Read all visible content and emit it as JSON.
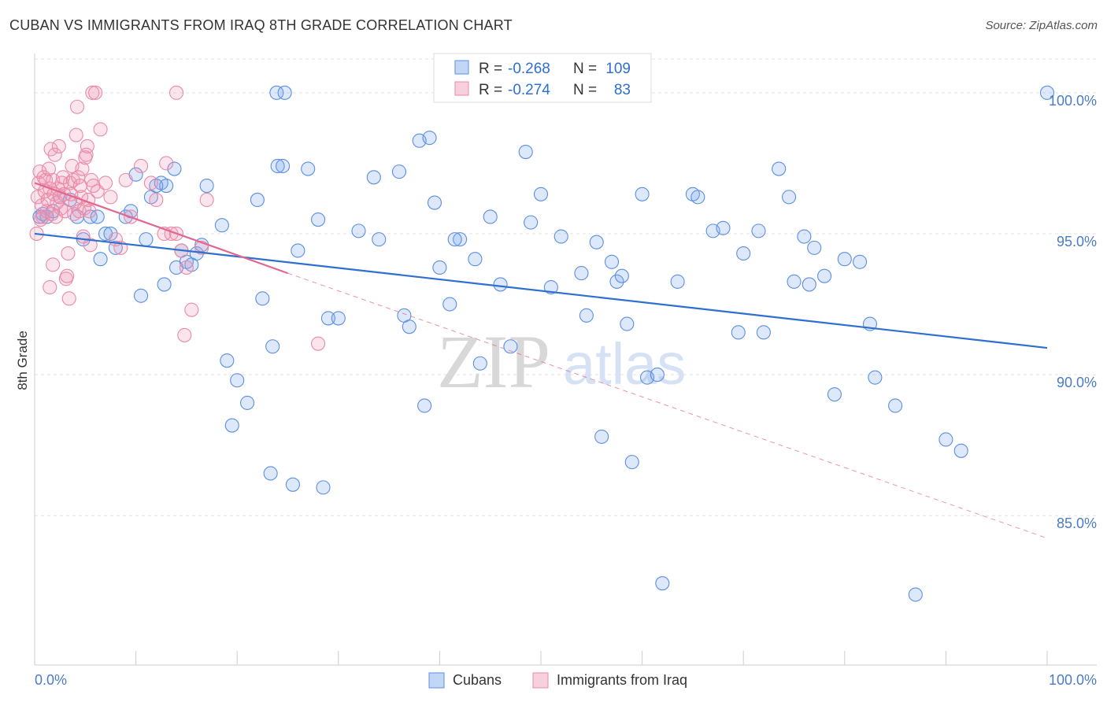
{
  "header": {
    "title": "CUBAN VS IMMIGRANTS FROM IRAQ 8TH GRADE CORRELATION CHART",
    "source": "Source: ZipAtlas.com"
  },
  "watermark": {
    "zip": "ZIP",
    "atlas": "atlas"
  },
  "colors": {
    "blue": "#5b8fe0",
    "blue_fill": "rgba(120,165,235,0.25)",
    "blue_line": "#2f6fd0",
    "pink": "#e98aa8",
    "pink_fill": "rgba(240,150,180,0.25)",
    "pink_line": "#e06890",
    "stat_text": "#2f6fd0",
    "tick_text": "#4a7cc7"
  },
  "legend_top": {
    "rows": [
      {
        "r_label": "R = ",
        "r_value": "-0.268",
        "n_label": "N = ",
        "n_value": "109"
      },
      {
        "r_label": "R = ",
        "r_value": "-0.274",
        "n_label": "N = ",
        "n_value": "83"
      }
    ]
  },
  "chart_data": {
    "type": "scatter",
    "title": "CUBAN VS IMMIGRANTS FROM IRAQ 8TH GRADE CORRELATION CHART",
    "xlabel": "",
    "ylabel": "8th Grade",
    "xlim": [
      0,
      100
    ],
    "ylim": [
      80.4,
      101.0
    ],
    "x_tick_labels": [
      "0.0%",
      "100.0%"
    ],
    "y_ticks": [
      85,
      90,
      95,
      100
    ],
    "y_tick_labels": [
      "85.0%",
      "90.0%",
      "95.0%",
      "100.0%"
    ],
    "grid": true,
    "legend_position": "bottom-center",
    "series": [
      {
        "name": "Cubans",
        "color": "blue",
        "r": -0.268,
        "n": 109,
        "trend": {
          "x": [
            0,
            100
          ],
          "y": [
            95.0,
            90.95
          ],
          "style": "solid"
        },
        "points": [
          [
            0.5,
            95.6
          ],
          [
            0.8,
            95.7
          ],
          [
            1.2,
            95.6
          ],
          [
            1.8,
            95.8
          ],
          [
            2.5,
            96.3
          ],
          [
            3.5,
            96.2
          ],
          [
            4.2,
            95.6
          ],
          [
            4.8,
            94.8
          ],
          [
            5.5,
            95.6
          ],
          [
            6.5,
            94.1
          ],
          [
            6.2,
            95.6
          ],
          [
            7.0,
            95.0
          ],
          [
            7.5,
            95.0
          ],
          [
            8.0,
            94.5
          ],
          [
            9.0,
            95.6
          ],
          [
            9.5,
            95.8
          ],
          [
            10.5,
            92.8
          ],
          [
            11.0,
            94.8
          ],
          [
            11.5,
            96.3
          ],
          [
            12.5,
            96.8
          ],
          [
            13.0,
            96.7
          ],
          [
            10.0,
            97.1
          ],
          [
            12.0,
            96.7
          ],
          [
            13.8,
            97.3
          ],
          [
            14.0,
            93.8
          ],
          [
            14.5,
            94.4
          ],
          [
            15.0,
            94.0
          ],
          [
            12.8,
            93.2
          ],
          [
            15.5,
            93.9
          ],
          [
            16.0,
            94.3
          ],
          [
            16.5,
            94.6
          ],
          [
            17.0,
            96.7
          ],
          [
            18.5,
            95.3
          ],
          [
            19.0,
            90.5
          ],
          [
            19.5,
            88.2
          ],
          [
            20.0,
            89.8
          ],
          [
            21.0,
            89.0
          ],
          [
            22.0,
            96.2
          ],
          [
            22.5,
            92.7
          ],
          [
            23.5,
            91.0
          ],
          [
            24.0,
            97.4
          ],
          [
            24.5,
            97.4
          ],
          [
            25.5,
            86.1
          ],
          [
            26.0,
            94.4
          ],
          [
            27.0,
            97.3
          ],
          [
            28.0,
            95.5
          ],
          [
            28.5,
            86.0
          ],
          [
            29.0,
            92.0
          ],
          [
            30.0,
            92.0
          ],
          [
            23.3,
            86.5
          ],
          [
            32.0,
            95.1
          ],
          [
            33.5,
            97.0
          ],
          [
            34.0,
            94.8
          ],
          [
            36.0,
            97.2
          ],
          [
            36.5,
            92.1
          ],
          [
            37.0,
            91.7
          ],
          [
            38.0,
            98.3
          ],
          [
            38.5,
            88.9
          ],
          [
            39.0,
            98.4
          ],
          [
            39.5,
            96.1
          ],
          [
            40.0,
            93.8
          ],
          [
            41.0,
            92.5
          ],
          [
            42.0,
            94.8
          ],
          [
            43.5,
            94.1
          ],
          [
            44.0,
            90.4
          ],
          [
            45.0,
            95.6
          ],
          [
            46.0,
            93.2
          ],
          [
            47.0,
            91.0
          ],
          [
            48.5,
            97.9
          ],
          [
            49.0,
            95.4
          ],
          [
            50.0,
            96.4
          ],
          [
            51.0,
            93.1
          ],
          [
            52.0,
            94.9
          ],
          [
            54.0,
            93.6
          ],
          [
            54.5,
            92.1
          ],
          [
            55.5,
            94.7
          ],
          [
            56.0,
            87.8
          ],
          [
            57.0,
            94.0
          ],
          [
            57.5,
            93.3
          ],
          [
            58.0,
            93.5
          ],
          [
            58.5,
            91.8
          ],
          [
            59.0,
            86.9
          ],
          [
            60.0,
            96.4
          ],
          [
            60.5,
            89.9
          ],
          [
            61.5,
            90.0
          ],
          [
            62.0,
            82.6
          ],
          [
            63.5,
            93.3
          ],
          [
            65.0,
            96.4
          ],
          [
            65.5,
            96.3
          ],
          [
            67.0,
            95.1
          ],
          [
            68.0,
            95.2
          ],
          [
            69.5,
            91.5
          ],
          [
            70.0,
            94.3
          ],
          [
            71.5,
            95.1
          ],
          [
            72.0,
            91.5
          ],
          [
            73.5,
            97.3
          ],
          [
            74.5,
            96.3
          ],
          [
            75.0,
            93.3
          ],
          [
            76.0,
            94.9
          ],
          [
            76.5,
            93.2
          ],
          [
            77.0,
            94.5
          ],
          [
            78.0,
            93.5
          ],
          [
            79.0,
            89.3
          ],
          [
            80.0,
            94.1
          ],
          [
            81.5,
            94.0
          ],
          [
            82.5,
            91.8
          ],
          [
            83.0,
            89.9
          ],
          [
            85.0,
            88.9
          ],
          [
            87.0,
            82.2
          ],
          [
            90.0,
            87.7
          ],
          [
            91.5,
            87.3
          ],
          [
            100.0,
            100.0
          ],
          [
            23.9,
            100.0
          ],
          [
            24.7,
            100.0
          ],
          [
            41.5,
            94.8
          ]
        ]
      },
      {
        "name": "Immigrants from Iraq",
        "color": "pink",
        "r": -0.274,
        "n": 83,
        "trend": {
          "x": [
            0,
            25
          ],
          "y": [
            96.8,
            93.6
          ],
          "style": "solid",
          "ext_x": [
            25,
            100
          ],
          "ext_y": [
            93.6,
            84.2
          ],
          "ext_style": "dashed"
        },
        "points": [
          [
            0.2,
            95.0
          ],
          [
            0.3,
            96.3
          ],
          [
            0.4,
            96.8
          ],
          [
            0.5,
            97.2
          ],
          [
            0.6,
            95.5
          ],
          [
            0.7,
            96.0
          ],
          [
            0.8,
            95.6
          ],
          [
            0.9,
            97.0
          ],
          [
            1.0,
            96.5
          ],
          [
            1.1,
            96.9
          ],
          [
            1.2,
            95.8
          ],
          [
            1.3,
            96.2
          ],
          [
            1.4,
            97.3
          ],
          [
            1.5,
            96.6
          ],
          [
            1.6,
            98.0
          ],
          [
            1.7,
            95.7
          ],
          [
            1.8,
            96.9
          ],
          [
            1.9,
            96.4
          ],
          [
            2.0,
            97.8
          ],
          [
            2.1,
            95.6
          ],
          [
            2.2,
            96.1
          ],
          [
            2.3,
            96.6
          ],
          [
            2.4,
            98.1
          ],
          [
            2.5,
            96.3
          ],
          [
            2.6,
            95.9
          ],
          [
            2.7,
            96.8
          ],
          [
            2.8,
            97.0
          ],
          [
            2.9,
            96.4
          ],
          [
            3.0,
            95.8
          ],
          [
            3.1,
            93.4
          ],
          [
            3.2,
            93.5
          ],
          [
            3.3,
            94.3
          ],
          [
            3.4,
            92.7
          ],
          [
            3.5,
            96.8
          ],
          [
            3.6,
            96.4
          ],
          [
            3.7,
            97.4
          ],
          [
            3.8,
            96.9
          ],
          [
            3.9,
            95.7
          ],
          [
            4.0,
            96.1
          ],
          [
            4.1,
            98.5
          ],
          [
            4.2,
            99.5
          ],
          [
            4.3,
            97.0
          ],
          [
            4.4,
            95.8
          ],
          [
            4.5,
            96.7
          ],
          [
            4.6,
            96.3
          ],
          [
            4.7,
            97.3
          ],
          [
            4.8,
            94.9
          ],
          [
            4.9,
            95.9
          ],
          [
            5.0,
            97.7
          ],
          [
            5.1,
            97.8
          ],
          [
            5.2,
            98.1
          ],
          [
            5.3,
            96.2
          ],
          [
            5.4,
            95.8
          ],
          [
            5.5,
            94.6
          ],
          [
            5.6,
            96.9
          ],
          [
            5.7,
            100.0
          ],
          [
            5.8,
            96.7
          ],
          [
            6.0,
            100.0
          ],
          [
            6.2,
            96.5
          ],
          [
            6.5,
            98.7
          ],
          [
            7.0,
            96.8
          ],
          [
            7.5,
            96.3
          ],
          [
            8.0,
            94.8
          ],
          [
            8.5,
            94.5
          ],
          [
            9.0,
            96.9
          ],
          [
            9.5,
            95.6
          ],
          [
            1.5,
            93.1
          ],
          [
            1.8,
            93.9
          ],
          [
            10.5,
            97.4
          ],
          [
            11.5,
            96.8
          ],
          [
            12.0,
            96.2
          ],
          [
            12.8,
            95.0
          ],
          [
            13.0,
            97.5
          ],
          [
            13.5,
            95.0
          ],
          [
            14.0,
            95.0
          ],
          [
            14.5,
            94.4
          ],
          [
            15.0,
            93.8
          ],
          [
            14.8,
            91.4
          ],
          [
            15.5,
            92.3
          ],
          [
            16.5,
            94.5
          ],
          [
            17.0,
            96.2
          ],
          [
            28.0,
            91.1
          ],
          [
            14.0,
            100.0
          ]
        ]
      }
    ]
  },
  "legend_bottom": {
    "items": [
      {
        "label": "Cubans"
      },
      {
        "label": "Immigrants from Iraq"
      }
    ]
  }
}
